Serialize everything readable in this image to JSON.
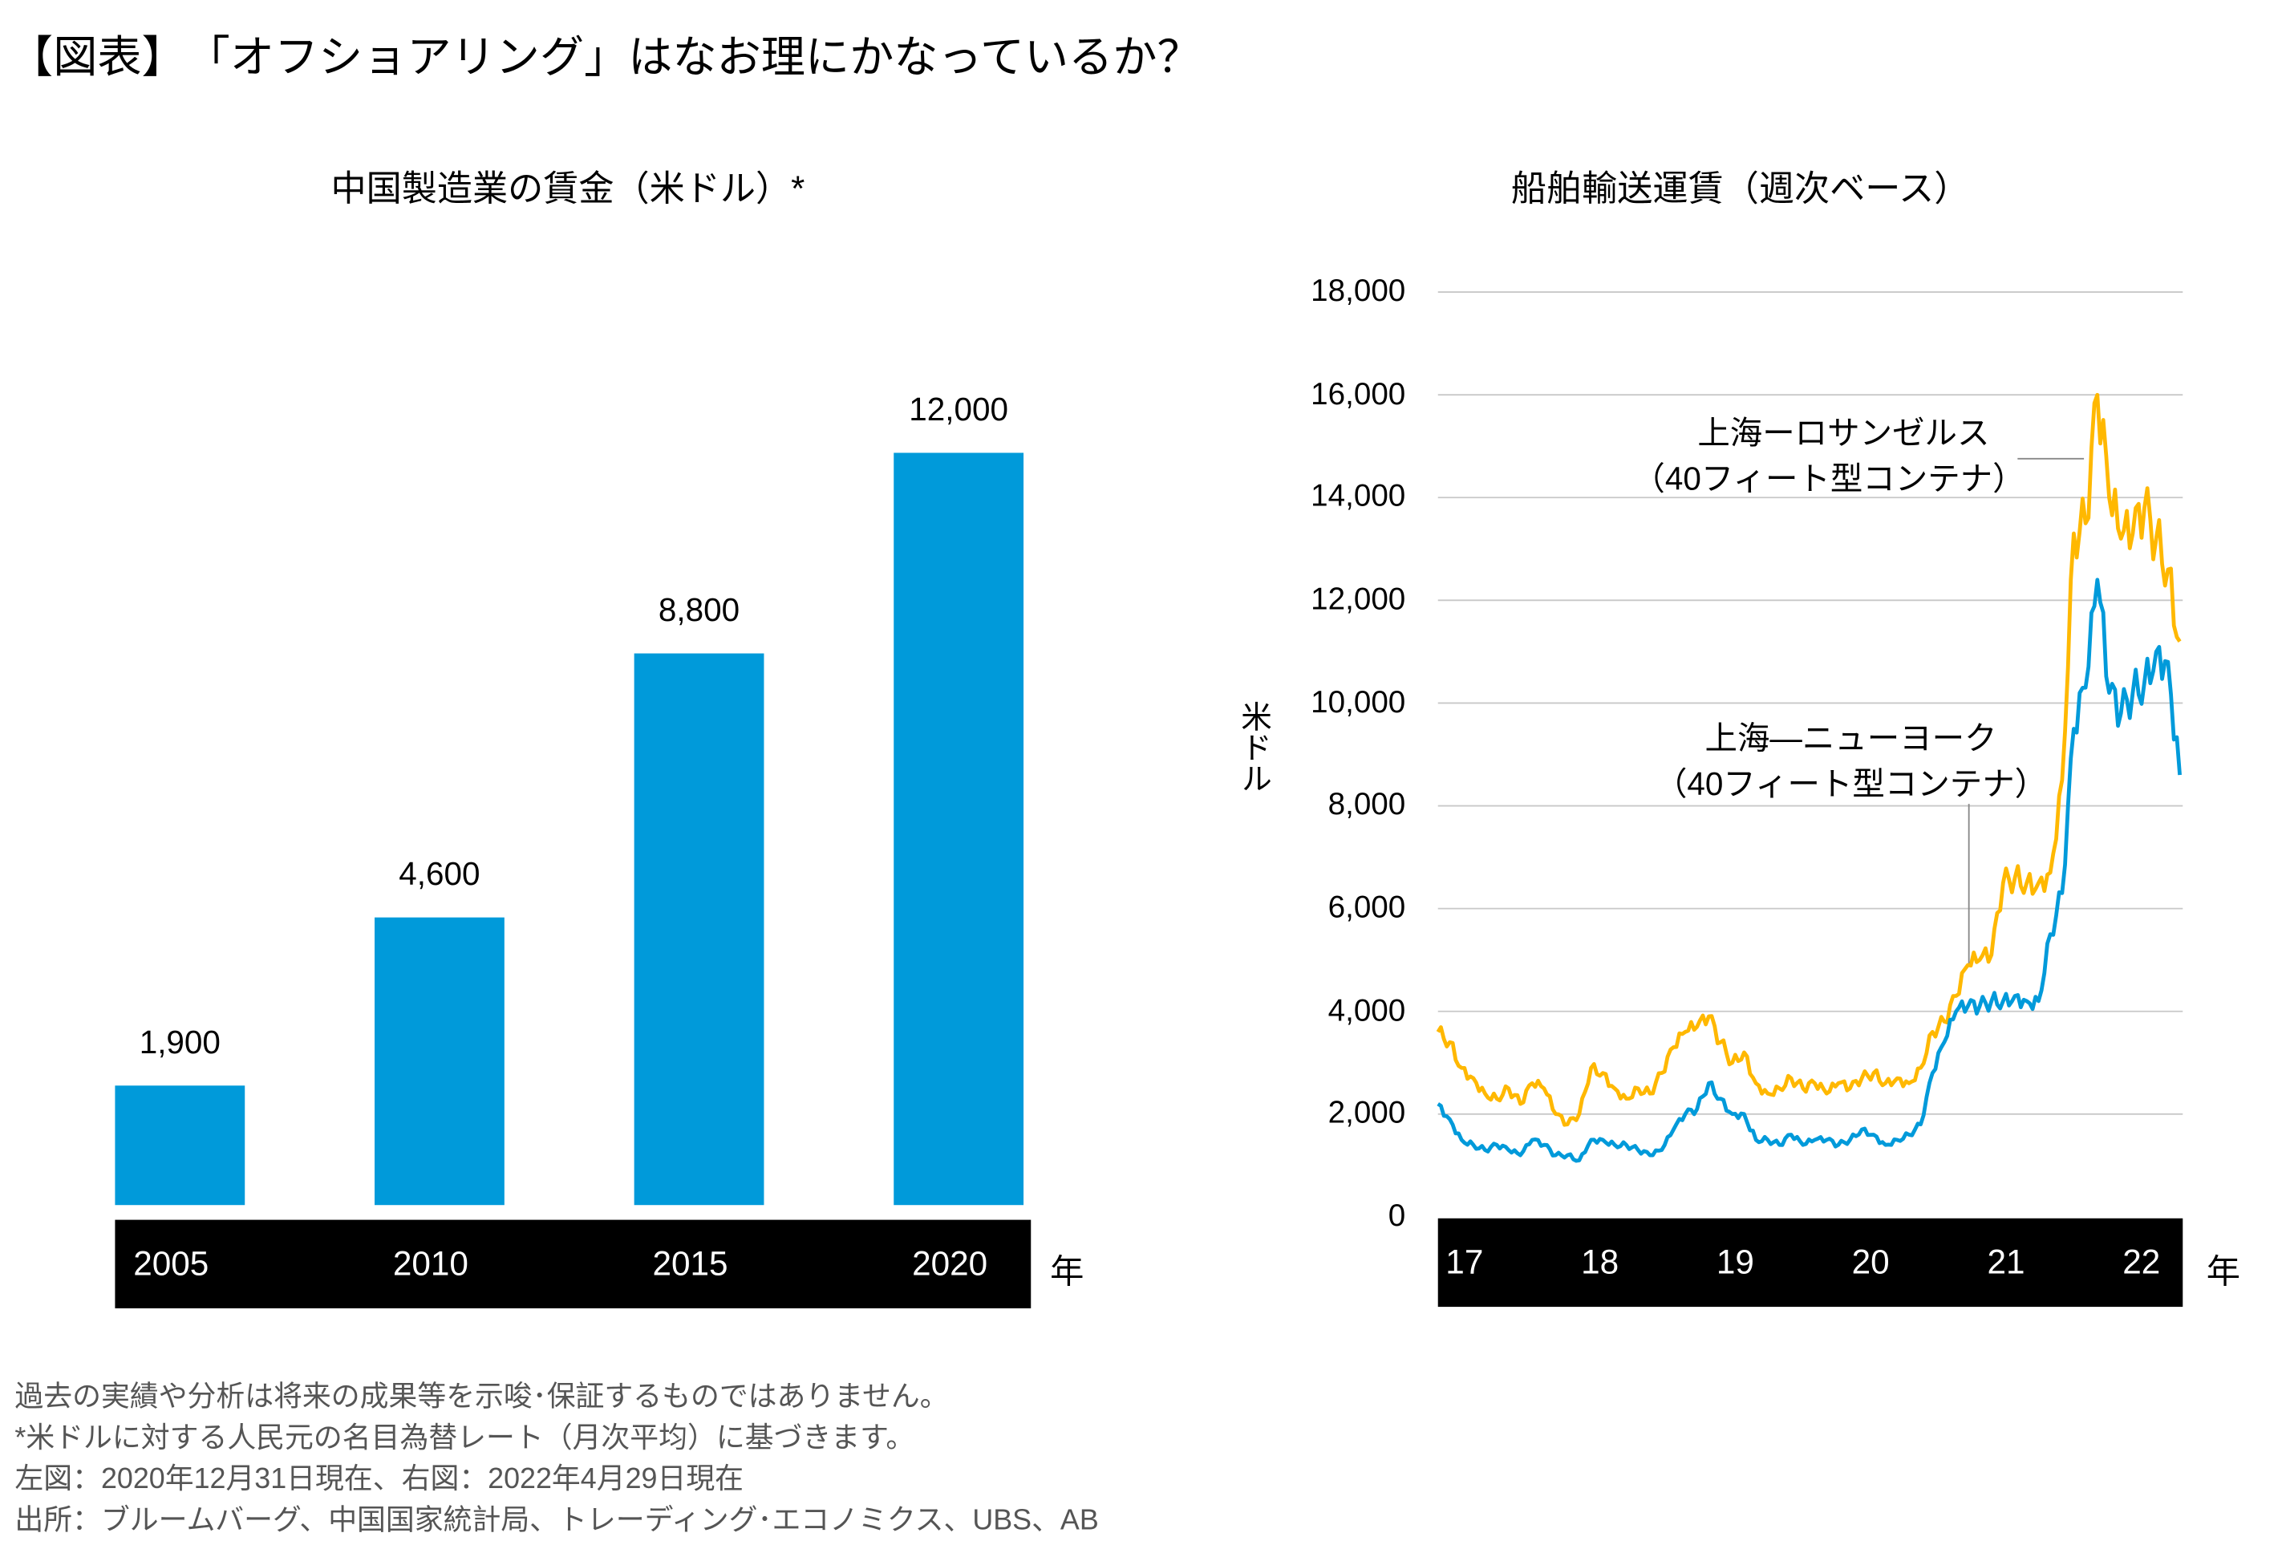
{
  "title": "【図表】　「オフショアリング」はなお理にかなっているか？",
  "chart_data": [
    {
      "type": "bar",
      "title": "中国製造業の賃金（米ドル）*",
      "categories": [
        "2005",
        "2010",
        "2015",
        "2020"
      ],
      "values": [
        1900,
        4600,
        8800,
        12000
      ],
      "value_labels": [
        "1,900",
        "4,600",
        "8,800",
        "12,000"
      ],
      "x_unit": "年",
      "ylim": [
        0,
        13000
      ],
      "color": "#009ADA",
      "grid": false
    },
    {
      "type": "line",
      "title": "船舶輸送運賃（週次ベース）",
      "ylabel": "米ドル",
      "x_unit": "年",
      "x_tick_labels": [
        "17",
        "18",
        "19",
        "20",
        "21",
        "22"
      ],
      "y_tick_labels": [
        "0",
        "2,000",
        "4,000",
        "6,000",
        "8,000",
        "10,000",
        "12,000",
        "14,000",
        "16,000",
        "18,000"
      ],
      "ylim": [
        0,
        18000
      ],
      "xlim": [
        "2017-01",
        "2022-04"
      ],
      "grid": true,
      "x": [
        "2017-01",
        "2017-02",
        "2017-03",
        "2017-04",
        "2017-05",
        "2017-06",
        "2017-07",
        "2017-08",
        "2017-09",
        "2017-10",
        "2017-11",
        "2017-12",
        "2018-01",
        "2018-02",
        "2018-03",
        "2018-04",
        "2018-05",
        "2018-06",
        "2018-07",
        "2018-08",
        "2018-09",
        "2018-10",
        "2018-11",
        "2018-12",
        "2019-01",
        "2019-02",
        "2019-03",
        "2019-04",
        "2019-05",
        "2019-06",
        "2019-07",
        "2019-08",
        "2019-09",
        "2019-10",
        "2019-11",
        "2019-12",
        "2020-01",
        "2020-02",
        "2020-03",
        "2020-04",
        "2020-05",
        "2020-06",
        "2020-07",
        "2020-08",
        "2020-09",
        "2020-10",
        "2020-11",
        "2020-12",
        "2021-01",
        "2021-02",
        "2021-03",
        "2021-04",
        "2021-05",
        "2021-06",
        "2021-07",
        "2021-08",
        "2021-09",
        "2021-10",
        "2021-11",
        "2021-12",
        "2022-01",
        "2022-02",
        "2022-03",
        "2022-04"
      ],
      "series": [
        {
          "name": "上海ーロサンゼルス（40フィート型コンテナ）",
          "color": "#FFB800",
          "values": [
            3600,
            3400,
            2900,
            2700,
            2400,
            2300,
            2500,
            2200,
            2600,
            2500,
            2000,
            1800,
            2000,
            2900,
            2800,
            2500,
            2300,
            2500,
            2400,
            2800,
            3300,
            3600,
            3700,
            3900,
            3400,
            3000,
            3200,
            2600,
            2400,
            2500,
            2700,
            2500,
            2600,
            2400,
            2600,
            2500,
            2700,
            2800,
            2600,
            2700,
            2600,
            2900,
            3600,
            3800,
            4300,
            4900,
            5000,
            5100,
            6500,
            6600,
            6500,
            6500,
            6700,
            8500,
            13300,
            13500,
            16000,
            14000,
            13200,
            13300,
            13800,
            13200,
            12600,
            11200
          ]
        },
        {
          "name": "上海ーニューヨーク（40フィート型コンテナ）",
          "color": "#009ADA",
          "values": [
            2200,
            1900,
            1500,
            1400,
            1300,
            1400,
            1300,
            1200,
            1500,
            1400,
            1200,
            1200,
            1100,
            1500,
            1500,
            1400,
            1400,
            1300,
            1200,
            1300,
            1700,
            2000,
            2100,
            2600,
            2300,
            2000,
            2000,
            1500,
            1500,
            1400,
            1600,
            1400,
            1500,
            1500,
            1400,
            1500,
            1700,
            1600,
            1400,
            1500,
            1600,
            1800,
            2800,
            3400,
            4000,
            4100,
            4100,
            4200,
            4200,
            4300,
            4200,
            4200,
            5500,
            6300,
            9500,
            10300,
            12400,
            10200,
            9800,
            10200,
            10400,
            11000,
            10800,
            8600
          ]
        }
      ],
      "annotations": {
        "la_line1": "上海ーロサンゼルス",
        "la_line2": "（40フィート型コンテナ）",
        "ny_line1": "上海—ニューヨーク",
        "ny_line2": "（40フィート型コンテナ）"
      }
    }
  ],
  "notes": [
    "過去の実績や分析は将来の成果等を示唆･保証するものではありません。",
    "*米ドルに対する人民元の名目為替レート（月次平均）に基づきます。",
    "左図：2020年12月31日現在、右図：2022年4月29日現在",
    "出所：ブルームバーグ、中国国家統計局、トレーディング･エコノミクス、UBS、AB"
  ]
}
